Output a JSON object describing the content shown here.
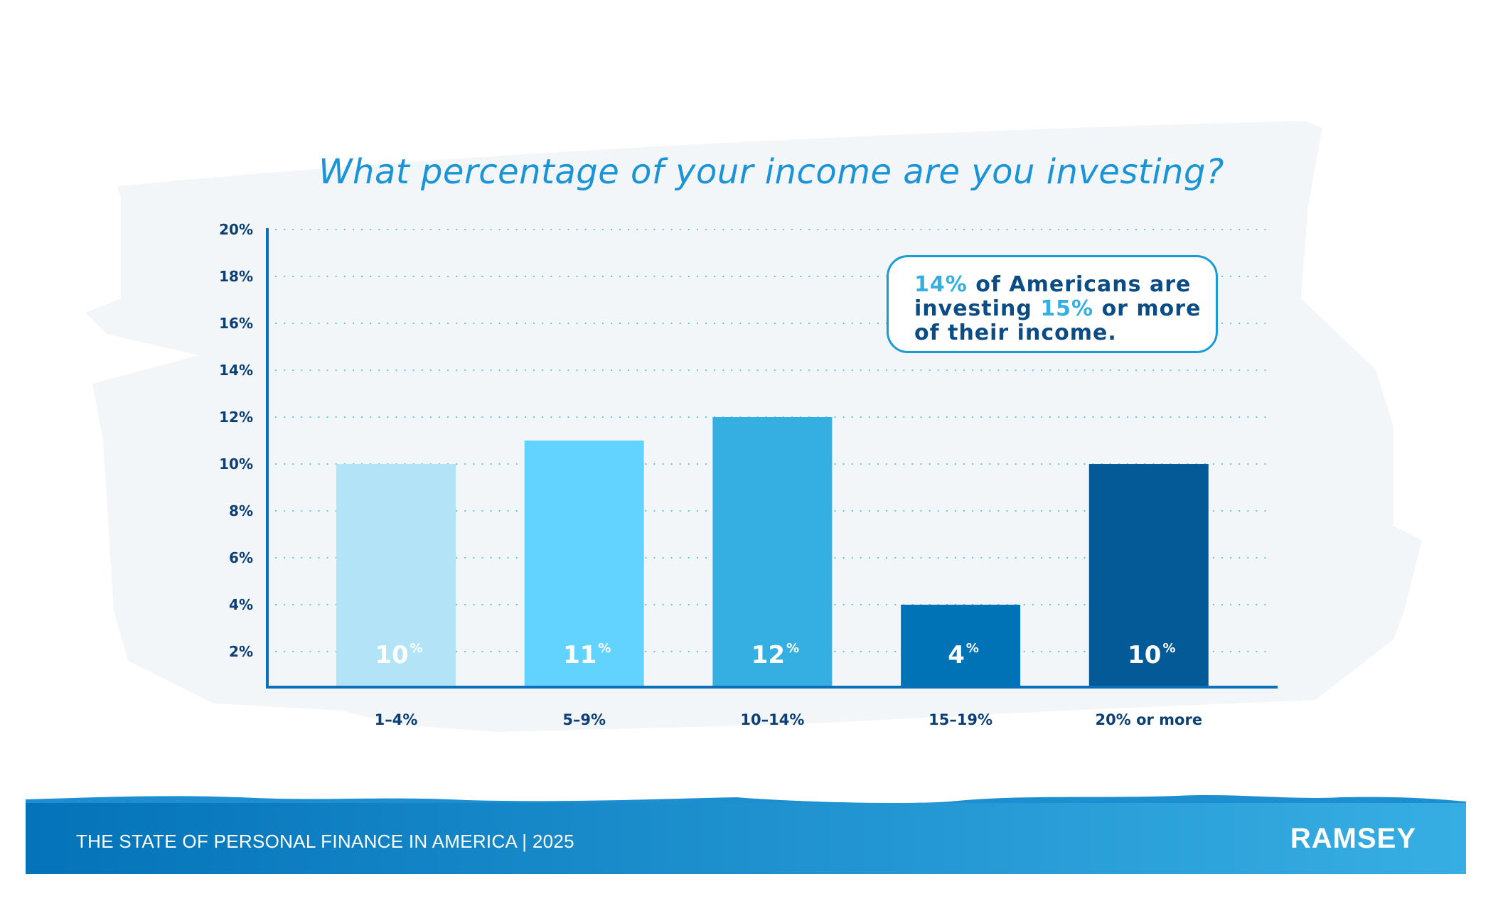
{
  "chart_data": {
    "type": "bar",
    "title": "What percentage of your income are you investing?",
    "categories": [
      "1–4%",
      "5–9%",
      "10–14%",
      "15–19%",
      "20% or more"
    ],
    "values": [
      10,
      11,
      12,
      4,
      10
    ],
    "value_labels": [
      "10",
      "11",
      "12",
      "4",
      "10"
    ],
    "value_suffix": "%",
    "colors": [
      "#b3e3f7",
      "#62d3fe",
      "#35aee2",
      "#0073b7",
      "#035a97"
    ],
    "yticks": [
      2,
      4,
      6,
      8,
      10,
      12,
      14,
      16,
      18,
      20
    ],
    "ytick_labels": [
      "2%",
      "4%",
      "6%",
      "8%",
      "10%",
      "12%",
      "14%",
      "16%",
      "18%",
      "20%"
    ],
    "ylim": [
      0,
      20
    ],
    "xlabel": "",
    "ylabel": "",
    "grid": true
  },
  "callout": {
    "hl1": "14%",
    "t1": " of Americans are",
    "t2": "investing ",
    "hl2": "15%",
    "t3": " or more",
    "t4": "of their income."
  },
  "footer": {
    "text": "THE STATE OF PERSONAL FINANCE IN AMERICA | 2025",
    "logo": "RAMSEY"
  },
  "colors": {
    "title": "#1a94d6",
    "axis": "#0a6fb8",
    "text": "#0c3f73",
    "footer_start": "#0473b9",
    "footer_end": "#37aee3"
  }
}
